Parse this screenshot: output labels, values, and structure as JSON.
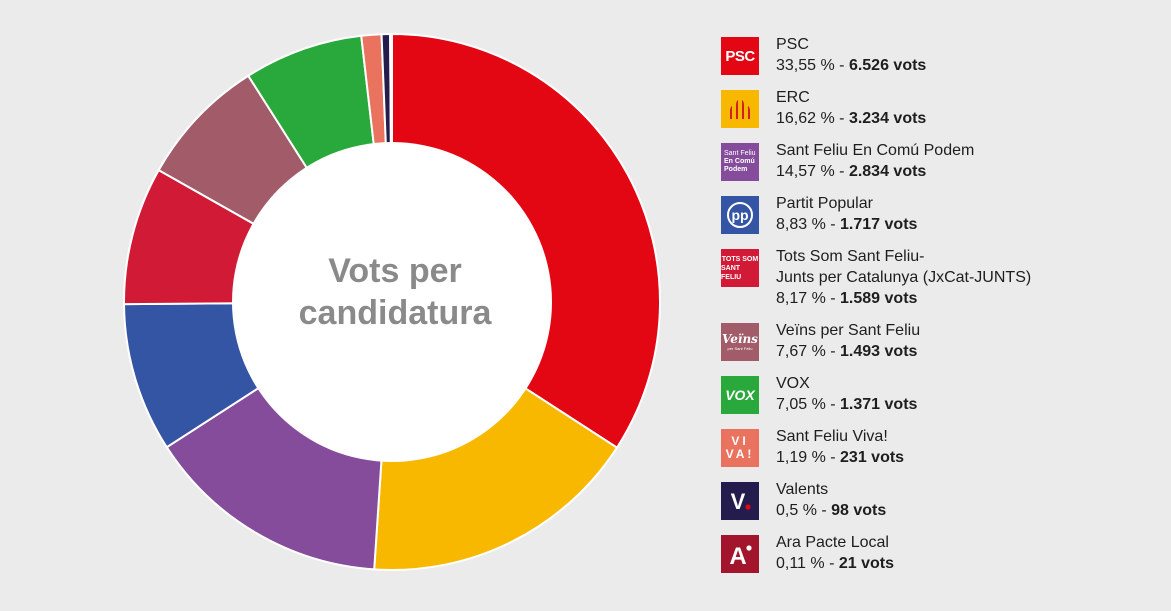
{
  "chart_data": {
    "type": "pie",
    "title": "Vots per candidatura",
    "title_lines": [
      "Vots per",
      "candidatura"
    ],
    "series": [
      {
        "name": "PSC",
        "name_lines": [
          "PSC"
        ],
        "percent": 33.55,
        "percent_label": "33,55 %",
        "votes": 6526,
        "votes_label": "6.526 vots",
        "color": "#e30613",
        "logo_text": "PSC",
        "logo_icon": "psc-rose-logo"
      },
      {
        "name": "ERC",
        "name_lines": [
          "ERC"
        ],
        "percent": 16.62,
        "percent_label": "16,62 %",
        "votes": 3234,
        "votes_label": "3.234 vots",
        "color": "#f9b800",
        "logo_text": "",
        "logo_icon": "erc-stripes-logo"
      },
      {
        "name": "Sant Feliu En Comú Podem",
        "name_lines": [
          "Sant Feliu En Comú Podem"
        ],
        "percent": 14.57,
        "percent_label": "14,57 %",
        "votes": 2834,
        "votes_label": "2.834 vots",
        "color": "#844c9b",
        "logo_text": "",
        "logo_icon": "comu-podem-logo",
        "logo_lines": [
          "Sant Feliu",
          "En Comú",
          "Podem"
        ]
      },
      {
        "name": "Partit Popular",
        "name_lines": [
          "Partit Popular"
        ],
        "percent": 8.83,
        "percent_label": "8,83 %",
        "votes": 1717,
        "votes_label": "1.717 vots",
        "color": "#3454a4",
        "logo_text": "pp",
        "logo_icon": "pp-logo"
      },
      {
        "name": "Tots Som Sant Feliu-Junts per Catalunya (JxCat-JUNTS)",
        "name_lines": [
          "Tots Som Sant Feliu-",
          "Junts per Catalunya (JxCat-JUNTS)"
        ],
        "percent": 8.17,
        "percent_label": "8,17 %",
        "votes": 1589,
        "votes_label": "1.589 vots",
        "color": "#d11a36",
        "logo_text": "",
        "logo_icon": "tots-som-logo",
        "logo_lines": [
          "TOTS SOM",
          "SANT FELIU"
        ]
      },
      {
        "name": "Veïns per Sant Feliu",
        "name_lines": [
          "Veïns per Sant Feliu"
        ],
        "percent": 7.67,
        "percent_label": "7,67 %",
        "votes": 1493,
        "votes_label": "1.493 vots",
        "color": "#a15b69",
        "logo_text": "",
        "logo_icon": "veins-logo",
        "logo_lines": [
          "Veïns",
          "per Sant Feliu"
        ]
      },
      {
        "name": "VOX",
        "name_lines": [
          "VOX"
        ],
        "percent": 7.05,
        "percent_label": "7,05 %",
        "votes": 1371,
        "votes_label": "1.371 vots",
        "color": "#29a93b",
        "logo_text": "VOX",
        "logo_icon": "vox-logo"
      },
      {
        "name": "Sant Feliu Viva!",
        "name_lines": [
          "Sant Feliu Viva!"
        ],
        "percent": 1.19,
        "percent_label": "1,19 %",
        "votes": 231,
        "votes_label": "231 vots",
        "color": "#e9735e",
        "logo_text": "",
        "logo_icon": "viva-logo",
        "logo_lines": [
          "VI",
          "VA!"
        ]
      },
      {
        "name": "Valents",
        "name_lines": [
          "Valents"
        ],
        "percent": 0.5,
        "percent_label": "0,5 %",
        "votes": 98,
        "votes_label": "98 vots",
        "color": "#231c4d",
        "logo_text": "V.",
        "logo_icon": "valents-logo"
      },
      {
        "name": "Ara Pacte Local",
        "name_lines": [
          "Ara Pacte Local"
        ],
        "percent": 0.11,
        "percent_label": "0,11 %",
        "votes": 21,
        "votes_label": "21 vots",
        "color": "#a3152d",
        "logo_text": "A",
        "logo_icon": "ara-pacte-logo"
      }
    ],
    "legend_position": "right",
    "separator": " - "
  }
}
